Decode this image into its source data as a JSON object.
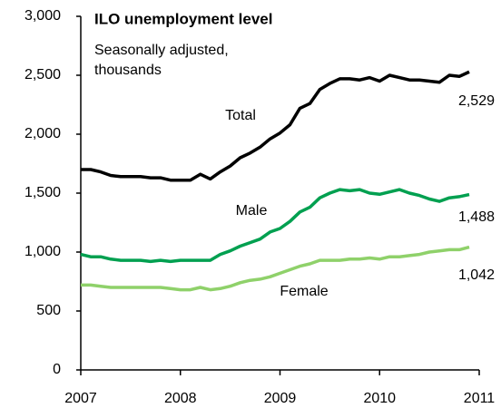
{
  "chart_data": {
    "type": "line",
    "title": "ILO unemployment level",
    "subtitle": [
      "Seasonally adjusted,",
      "thousands"
    ],
    "x": [
      2007.0,
      2007.1,
      2007.2,
      2007.3,
      2007.4,
      2007.5,
      2007.6,
      2007.7,
      2007.8,
      2007.9,
      2008.0,
      2008.1,
      2008.2,
      2008.3,
      2008.4,
      2008.5,
      2008.6,
      2008.7,
      2008.8,
      2008.9,
      2009.0,
      2009.1,
      2009.2,
      2009.3,
      2009.4,
      2009.5,
      2009.6,
      2009.7,
      2009.8,
      2009.9,
      2010.0,
      2010.1,
      2010.2,
      2010.3,
      2010.4,
      2010.5,
      2010.6,
      2010.7,
      2010.8,
      2010.9
    ],
    "series": [
      {
        "name": "Total",
        "color": "#000000",
        "values": [
          1700,
          1700,
          1680,
          1650,
          1640,
          1640,
          1640,
          1630,
          1630,
          1610,
          1610,
          1610,
          1660,
          1620,
          1680,
          1730,
          1800,
          1840,
          1890,
          1960,
          2010,
          2080,
          2220,
          2260,
          2380,
          2430,
          2470,
          2470,
          2460,
          2480,
          2450,
          2500,
          2480,
          2460,
          2460,
          2450,
          2440,
          2500,
          2490,
          2529
        ],
        "value_labels": [
          null,
          null,
          null,
          null,
          null,
          null,
          null,
          null,
          null,
          null,
          null,
          null,
          null,
          null,
          null,
          null,
          null,
          null,
          null,
          null,
          null,
          null,
          null,
          null,
          null,
          null,
          null,
          null,
          null,
          null,
          null,
          null,
          null,
          null,
          null,
          null,
          null,
          null,
          null,
          "2,529"
        ]
      },
      {
        "name": "Male",
        "color": "#00a050",
        "values": [
          980,
          960,
          960,
          940,
          930,
          930,
          930,
          920,
          930,
          920,
          930,
          930,
          930,
          930,
          980,
          1010,
          1050,
          1080,
          1110,
          1170,
          1200,
          1260,
          1340,
          1380,
          1460,
          1500,
          1530,
          1520,
          1530,
          1500,
          1490,
          1510,
          1530,
          1500,
          1480,
          1450,
          1430,
          1460,
          1470,
          1488
        ],
        "value_labels": [
          null,
          null,
          null,
          null,
          null,
          null,
          null,
          null,
          null,
          null,
          null,
          null,
          null,
          null,
          null,
          null,
          null,
          null,
          null,
          null,
          null,
          null,
          null,
          null,
          null,
          null,
          null,
          null,
          null,
          null,
          null,
          null,
          null,
          null,
          null,
          null,
          null,
          null,
          null,
          "1,488"
        ]
      },
      {
        "name": "Female",
        "color": "#8fd16a",
        "values": [
          720,
          720,
          710,
          700,
          700,
          700,
          700,
          700,
          700,
          690,
          680,
          680,
          700,
          680,
          690,
          710,
          740,
          760,
          770,
          790,
          820,
          850,
          880,
          900,
          930,
          930,
          930,
          940,
          940,
          950,
          940,
          960,
          960,
          970,
          980,
          1000,
          1010,
          1020,
          1020,
          1042
        ],
        "value_labels": [
          null,
          null,
          null,
          null,
          null,
          null,
          null,
          null,
          null,
          null,
          null,
          null,
          null,
          null,
          null,
          null,
          null,
          null,
          null,
          null,
          null,
          null,
          null,
          null,
          null,
          null,
          null,
          null,
          null,
          null,
          null,
          null,
          null,
          null,
          null,
          null,
          null,
          null,
          null,
          "1,042"
        ]
      }
    ],
    "xlim": [
      2007,
      2011
    ],
    "xticks": [
      2007,
      2008,
      2009,
      2010,
      2011
    ],
    "ylim": [
      0,
      3000
    ],
    "yticks": [
      0,
      500,
      {
        "value": 1000,
        "label": "1,000"
      },
      {
        "value": 1500,
        "label": "1,500"
      },
      {
        "value": 2000,
        "label": "2,000"
      },
      {
        "value": 2500,
        "label": "2,500"
      },
      {
        "value": 3000,
        "label": "3,000"
      }
    ],
    "grid": false
  }
}
